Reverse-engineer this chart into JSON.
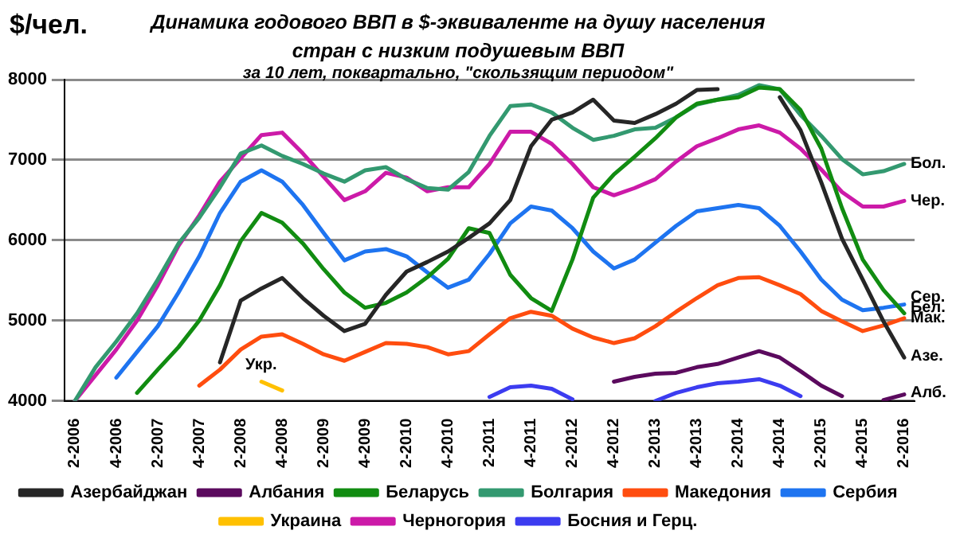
{
  "chart_data": {
    "type": "line",
    "title": "Динамика годового ВВП в $-эквиваленте  на душу населения стран с низким подушевым ВВП",
    "subtitle": "за 10 лет, поквартально, \"скользящим периодом\"",
    "ylabel": "$/чел.",
    "categories": [
      "2-2006",
      null,
      "4-2006",
      null,
      "2-2007",
      null,
      "4-2007",
      null,
      "2-2008",
      null,
      "4-2008",
      null,
      "2-2009",
      null,
      "4-2009",
      null,
      "2-2010",
      null,
      "4-2010",
      null,
      "2-2011",
      null,
      "4-2011",
      null,
      "2-2012",
      null,
      "4-2012",
      null,
      "2-2013",
      null,
      "4-2013",
      null,
      "2-2014",
      null,
      "4-2014",
      null,
      "2-2015",
      null,
      "4-2015",
      null,
      "2-2016"
    ],
    "ylim": [
      4000,
      8000
    ],
    "yticks": [
      4000,
      5000,
      6000,
      7000,
      8000
    ],
    "grid": "y",
    "legend": "bottom",
    "marker": "none",
    "line_style": "solid",
    "series": [
      {
        "name": "Азербайджан",
        "color": "#262626",
        "values": [
          null,
          null,
          null,
          null,
          null,
          null,
          null,
          4480,
          5250,
          5400,
          5530,
          5280,
          5060,
          4870,
          4960,
          5320,
          5610,
          5730,
          5860,
          6030,
          6210,
          6500,
          7170,
          7500,
          7590,
          7750,
          7490,
          7460,
          7570,
          7700,
          7870,
          7880,
          null,
          null,
          7780,
          7370,
          6720,
          6020,
          5510,
          4990,
          4540
        ]
      },
      {
        "name": "Албания",
        "color": "#5b0a5e",
        "values": [
          null,
          null,
          null,
          null,
          null,
          null,
          null,
          null,
          null,
          null,
          null,
          null,
          null,
          null,
          null,
          null,
          null,
          null,
          null,
          null,
          null,
          null,
          null,
          null,
          null,
          null,
          4240,
          4300,
          4340,
          4350,
          4420,
          4460,
          4540,
          4620,
          4540,
          4370,
          4190,
          4060,
          null,
          4010,
          4080
        ]
      },
      {
        "name": "Беларусь",
        "color": "#118c11",
        "values": [
          null,
          null,
          null,
          4100,
          4390,
          4670,
          5000,
          5440,
          5990,
          6340,
          6220,
          5960,
          5640,
          5350,
          5160,
          5220,
          5350,
          5540,
          5770,
          6150,
          6090,
          5570,
          5280,
          5120,
          5760,
          6530,
          6820,
          7040,
          7270,
          7530,
          7700,
          7750,
          7780,
          7900,
          7880,
          7620,
          7140,
          6400,
          5760,
          5380,
          5090
        ]
      },
      {
        "name": "Болгария",
        "color": "#339970",
        "values": [
          4000,
          4420,
          4740,
          5090,
          5510,
          5960,
          6280,
          6660,
          7080,
          7180,
          7050,
          6950,
          6830,
          6730,
          6870,
          6910,
          6760,
          6650,
          6630,
          6850,
          7300,
          7670,
          7690,
          7590,
          7400,
          7250,
          7300,
          7380,
          7400,
          7530,
          7690,
          7750,
          7810,
          7930,
          7880,
          7560,
          7300,
          7010,
          6820,
          6860,
          6950
        ]
      },
      {
        "name": "Македония",
        "color": "#ff4d0f",
        "values": [
          null,
          null,
          null,
          null,
          null,
          null,
          4190,
          4390,
          4640,
          4800,
          4830,
          4710,
          4580,
          4500,
          4610,
          4720,
          4710,
          4670,
          4580,
          4620,
          4830,
          5030,
          5110,
          5060,
          4900,
          4790,
          4720,
          4780,
          4930,
          5110,
          5280,
          5440,
          5530,
          5540,
          5440,
          5330,
          5120,
          4990,
          4870,
          4940,
          5030
        ]
      },
      {
        "name": "Сербия",
        "color": "#1e74f0",
        "values": [
          null,
          null,
          4290,
          4610,
          4930,
          5350,
          5800,
          6340,
          6730,
          6870,
          6730,
          6440,
          6090,
          5750,
          5860,
          5890,
          5800,
          5600,
          5410,
          5510,
          5830,
          6210,
          6420,
          6370,
          6150,
          5860,
          5650,
          5760,
          5970,
          6180,
          6360,
          6400,
          6440,
          6400,
          6180,
          5860,
          5510,
          5260,
          5130,
          5160,
          5200
        ]
      },
      {
        "name": "Украина",
        "color": "#ffc000",
        "values": [
          null,
          null,
          null,
          null,
          null,
          null,
          null,
          null,
          null,
          4240,
          4130,
          null,
          null,
          null,
          null,
          null,
          null,
          null,
          null,
          null,
          null,
          null,
          null,
          null,
          null,
          null,
          null,
          null,
          null,
          null,
          null,
          null,
          null,
          null,
          null,
          null,
          null,
          null,
          null,
          null,
          null
        ]
      },
      {
        "name": "Черногория",
        "color": "#cc1aa8",
        "values": [
          4000,
          4320,
          4640,
          5000,
          5440,
          5930,
          6310,
          6730,
          7020,
          7310,
          7340,
          7080,
          6790,
          6500,
          6610,
          6840,
          6780,
          6610,
          6660,
          6660,
          6950,
          7350,
          7350,
          7200,
          6950,
          6660,
          6560,
          6650,
          6760,
          6980,
          7170,
          7270,
          7380,
          7430,
          7340,
          7140,
          6880,
          6600,
          6420,
          6420,
          6490
        ]
      },
      {
        "name": "Босния и Герц.",
        "color": "#3c3cf0",
        "values": [
          null,
          null,
          null,
          null,
          null,
          null,
          null,
          null,
          null,
          null,
          null,
          null,
          null,
          null,
          null,
          null,
          null,
          null,
          null,
          null,
          4050,
          4170,
          4190,
          4150,
          4020,
          null,
          null,
          null,
          4000,
          4100,
          4170,
          4220,
          4240,
          4270,
          4190,
          4060,
          null,
          null,
          null,
          null,
          null
        ]
      }
    ],
    "annotations": [
      {
        "text": "Бол.",
        "x": "2-2016",
        "y": 6950
      },
      {
        "text": "Чер.",
        "x": "2-2016",
        "y": 6490
      },
      {
        "text": "Сер.",
        "x": "2-2016",
        "y": 5290
      },
      {
        "text": "Бел.",
        "x": "2-2016",
        "y": 5160
      },
      {
        "text": "Мак.",
        "x": "2-2016",
        "y": 5030
      },
      {
        "text": "Азе.",
        "x": "2-2016",
        "y": 4560
      },
      {
        "text": "Алб.",
        "x": "2-2016",
        "y": 4100
      },
      "Укр."
    ]
  }
}
